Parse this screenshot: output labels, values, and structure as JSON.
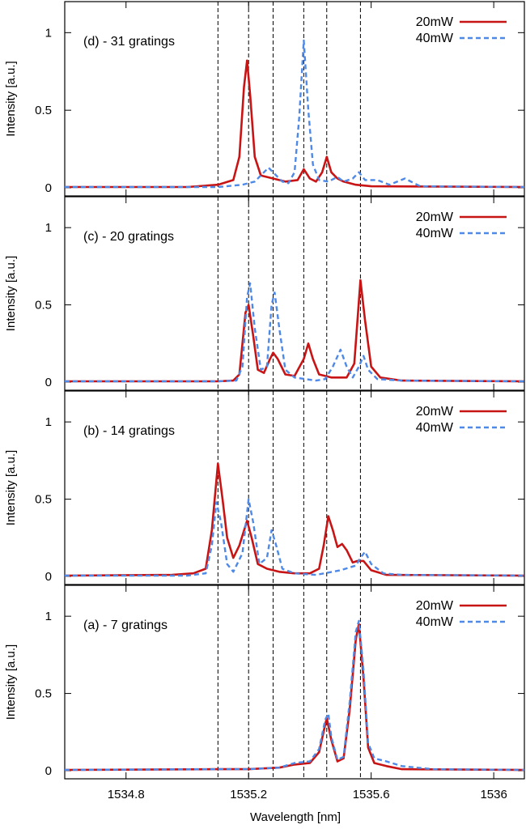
{
  "chart_data": {
    "type": "line",
    "xlabel": "Wavelength [nm]",
    "ylabel": "Intensity [a.u.]",
    "xlim": [
      1534.6,
      1536.1
    ],
    "ylim": [
      0,
      1.2
    ],
    "x_ticks": [
      1534.8,
      1535.2,
      1535.6,
      1536.0
    ],
    "x_tick_labels": [
      "1534.8",
      "1535.2",
      "1535.6",
      "1536"
    ],
    "y_ticks": [
      0,
      0.5,
      1
    ],
    "y_tick_labels": [
      "0",
      "0.5",
      "1"
    ],
    "vertical_reference_lines": [
      1535.1,
      1535.2,
      1535.28,
      1535.38,
      1535.455,
      1535.565
    ],
    "legend": [
      "20mW",
      "40mW"
    ],
    "series_colors": {
      "20mW": "#c81414",
      "40mW": "#4f89e6"
    },
    "panels": [
      {
        "label": "(d) - 31 gratings",
        "series": [
          {
            "name": "20mW",
            "points": [
              [
                1534.6,
                0.005
              ],
              [
                1535.0,
                0.005
              ],
              [
                1535.1,
                0.02
              ],
              [
                1535.15,
                0.05
              ],
              [
                1535.17,
                0.2
              ],
              [
                1535.185,
                0.65
              ],
              [
                1535.195,
                0.82
              ],
              [
                1535.205,
                0.6
              ],
              [
                1535.22,
                0.2
              ],
              [
                1535.24,
                0.08
              ],
              [
                1535.28,
                0.06
              ],
              [
                1535.32,
                0.04
              ],
              [
                1535.36,
                0.05
              ],
              [
                1535.38,
                0.12
              ],
              [
                1535.4,
                0.06
              ],
              [
                1535.42,
                0.04
              ],
              [
                1535.44,
                0.1
              ],
              [
                1535.455,
                0.2
              ],
              [
                1535.47,
                0.1
              ],
              [
                1535.49,
                0.06
              ],
              [
                1535.51,
                0.04
              ],
              [
                1535.55,
                0.02
              ],
              [
                1535.6,
                0.01
              ],
              [
                1536.1,
                0.005
              ]
            ]
          },
          {
            "name": "40mW",
            "points": [
              [
                1534.6,
                0.005
              ],
              [
                1535.1,
                0.005
              ],
              [
                1535.18,
                0.02
              ],
              [
                1535.22,
                0.04
              ],
              [
                1535.245,
                0.09
              ],
              [
                1535.265,
                0.13
              ],
              [
                1535.285,
                0.09
              ],
              [
                1535.31,
                0.04
              ],
              [
                1535.33,
                0.03
              ],
              [
                1535.35,
                0.1
              ],
              [
                1535.365,
                0.45
              ],
              [
                1535.38,
                0.95
              ],
              [
                1535.395,
                0.5
              ],
              [
                1535.41,
                0.15
              ],
              [
                1535.43,
                0.05
              ],
              [
                1535.46,
                0.04
              ],
              [
                1535.49,
                0.07
              ],
              [
                1535.51,
                0.04
              ],
              [
                1535.54,
                0.06
              ],
              [
                1535.56,
                0.1
              ],
              [
                1535.58,
                0.05
              ],
              [
                1535.62,
                0.05
              ],
              [
                1535.66,
                0.02
              ],
              [
                1535.71,
                0.06
              ],
              [
                1535.76,
                0.01
              ],
              [
                1536.1,
                0.005
              ]
            ]
          }
        ]
      },
      {
        "label": "(c) - 20 gratings",
        "series": [
          {
            "name": "20mW",
            "points": [
              [
                1534.6,
                0.005
              ],
              [
                1535.1,
                0.005
              ],
              [
                1535.15,
                0.01
              ],
              [
                1535.17,
                0.05
              ],
              [
                1535.19,
                0.45
              ],
              [
                1535.2,
                0.5
              ],
              [
                1535.215,
                0.3
              ],
              [
                1535.23,
                0.08
              ],
              [
                1535.25,
                0.06
              ],
              [
                1535.27,
                0.15
              ],
              [
                1535.28,
                0.19
              ],
              [
                1535.295,
                0.15
              ],
              [
                1535.32,
                0.05
              ],
              [
                1535.35,
                0.04
              ],
              [
                1535.38,
                0.15
              ],
              [
                1535.395,
                0.25
              ],
              [
                1535.41,
                0.15
              ],
              [
                1535.43,
                0.05
              ],
              [
                1535.47,
                0.03
              ],
              [
                1535.52,
                0.03
              ],
              [
                1535.545,
                0.12
              ],
              [
                1535.565,
                0.66
              ],
              [
                1535.58,
                0.4
              ],
              [
                1535.6,
                0.1
              ],
              [
                1535.63,
                0.03
              ],
              [
                1535.7,
                0.01
              ],
              [
                1536.1,
                0.005
              ]
            ]
          },
          {
            "name": "40mW",
            "points": [
              [
                1534.6,
                0.005
              ],
              [
                1535.1,
                0.005
              ],
              [
                1535.16,
                0.01
              ],
              [
                1535.18,
                0.1
              ],
              [
                1535.195,
                0.55
              ],
              [
                1535.205,
                0.64
              ],
              [
                1535.22,
                0.35
              ],
              [
                1535.24,
                0.08
              ],
              [
                1535.26,
                0.1
              ],
              [
                1535.275,
                0.5
              ],
              [
                1535.285,
                0.58
              ],
              [
                1535.3,
                0.35
              ],
              [
                1535.32,
                0.08
              ],
              [
                1535.35,
                0.03
              ],
              [
                1535.42,
                0.01
              ],
              [
                1535.45,
                0.02
              ],
              [
                1535.475,
                0.1
              ],
              [
                1535.5,
                0.21
              ],
              [
                1535.52,
                0.1
              ],
              [
                1535.54,
                0.03
              ],
              [
                1535.56,
                0.1
              ],
              [
                1535.575,
                0.17
              ],
              [
                1535.59,
                0.08
              ],
              [
                1535.62,
                0.02
              ],
              [
                1535.7,
                0.01
              ],
              [
                1536.1,
                0.005
              ]
            ]
          }
        ]
      },
      {
        "label": "(b) - 14 gratings",
        "series": [
          {
            "name": "20mW",
            "points": [
              [
                1534.6,
                0.005
              ],
              [
                1534.95,
                0.01
              ],
              [
                1535.02,
                0.02
              ],
              [
                1535.06,
                0.05
              ],
              [
                1535.08,
                0.3
              ],
              [
                1535.1,
                0.73
              ],
              [
                1535.115,
                0.5
              ],
              [
                1535.13,
                0.25
              ],
              [
                1535.15,
                0.12
              ],
              [
                1535.17,
                0.2
              ],
              [
                1535.195,
                0.36
              ],
              [
                1535.21,
                0.25
              ],
              [
                1535.23,
                0.08
              ],
              [
                1535.26,
                0.05
              ],
              [
                1535.3,
                0.03
              ],
              [
                1535.35,
                0.02
              ],
              [
                1535.4,
                0.02
              ],
              [
                1535.43,
                0.05
              ],
              [
                1535.445,
                0.2
              ],
              [
                1535.46,
                0.39
              ],
              [
                1535.475,
                0.3
              ],
              [
                1535.49,
                0.19
              ],
              [
                1535.505,
                0.21
              ],
              [
                1535.52,
                0.17
              ],
              [
                1535.54,
                0.09
              ],
              [
                1535.555,
                0.1
              ],
              [
                1535.575,
                0.1
              ],
              [
                1535.6,
                0.04
              ],
              [
                1535.65,
                0.01
              ],
              [
                1536.1,
                0.005
              ]
            ]
          },
          {
            "name": "40mW",
            "points": [
              [
                1534.6,
                0.005
              ],
              [
                1535.0,
                0.005
              ],
              [
                1535.06,
                0.02
              ],
              [
                1535.08,
                0.2
              ],
              [
                1535.095,
                0.48
              ],
              [
                1535.11,
                0.35
              ],
              [
                1535.13,
                0.08
              ],
              [
                1535.15,
                0.03
              ],
              [
                1535.18,
                0.15
              ],
              [
                1535.2,
                0.5
              ],
              [
                1535.215,
                0.35
              ],
              [
                1535.235,
                0.08
              ],
              [
                1535.26,
                0.12
              ],
              [
                1535.275,
                0.3
              ],
              [
                1535.29,
                0.2
              ],
              [
                1535.31,
                0.05
              ],
              [
                1535.35,
                0.02
              ],
              [
                1535.42,
                0.01
              ],
              [
                1535.5,
                0.04
              ],
              [
                1535.55,
                0.07
              ],
              [
                1535.565,
                0.12
              ],
              [
                1535.58,
                0.16
              ],
              [
                1535.6,
                0.08
              ],
              [
                1535.64,
                0.02
              ],
              [
                1535.7,
                0.01
              ],
              [
                1536.1,
                0.005
              ]
            ]
          }
        ]
      },
      {
        "label": "(a) - 7 gratings",
        "series": [
          {
            "name": "20mW",
            "points": [
              [
                1534.6,
                0.005
              ],
              [
                1535.1,
                0.01
              ],
              [
                1535.2,
                0.01
              ],
              [
                1535.3,
                0.02
              ],
              [
                1535.35,
                0.04
              ],
              [
                1535.4,
                0.05
              ],
              [
                1535.43,
                0.12
              ],
              [
                1535.45,
                0.3
              ],
              [
                1535.455,
                0.34
              ],
              [
                1535.47,
                0.2
              ],
              [
                1535.49,
                0.06
              ],
              [
                1535.51,
                0.08
              ],
              [
                1535.53,
                0.4
              ],
              [
                1535.55,
                0.85
              ],
              [
                1535.56,
                0.95
              ],
              [
                1535.575,
                0.6
              ],
              [
                1535.59,
                0.15
              ],
              [
                1535.61,
                0.05
              ],
              [
                1535.65,
                0.03
              ],
              [
                1535.7,
                0.01
              ],
              [
                1536.1,
                0.005
              ]
            ]
          },
          {
            "name": "40mW",
            "points": [
              [
                1534.6,
                0.005
              ],
              [
                1535.1,
                0.01
              ],
              [
                1535.2,
                0.01
              ],
              [
                1535.3,
                0.02
              ],
              [
                1535.35,
                0.05
              ],
              [
                1535.4,
                0.06
              ],
              [
                1535.43,
                0.14
              ],
              [
                1535.45,
                0.33
              ],
              [
                1535.46,
                0.37
              ],
              [
                1535.47,
                0.22
              ],
              [
                1535.49,
                0.07
              ],
              [
                1535.51,
                0.09
              ],
              [
                1535.53,
                0.45
              ],
              [
                1535.55,
                0.9
              ],
              [
                1535.56,
                0.97
              ],
              [
                1535.575,
                0.65
              ],
              [
                1535.59,
                0.18
              ],
              [
                1535.61,
                0.08
              ],
              [
                1535.65,
                0.06
              ],
              [
                1535.7,
                0.03
              ],
              [
                1535.8,
                0.01
              ],
              [
                1536.1,
                0.005
              ]
            ]
          }
        ]
      }
    ]
  }
}
